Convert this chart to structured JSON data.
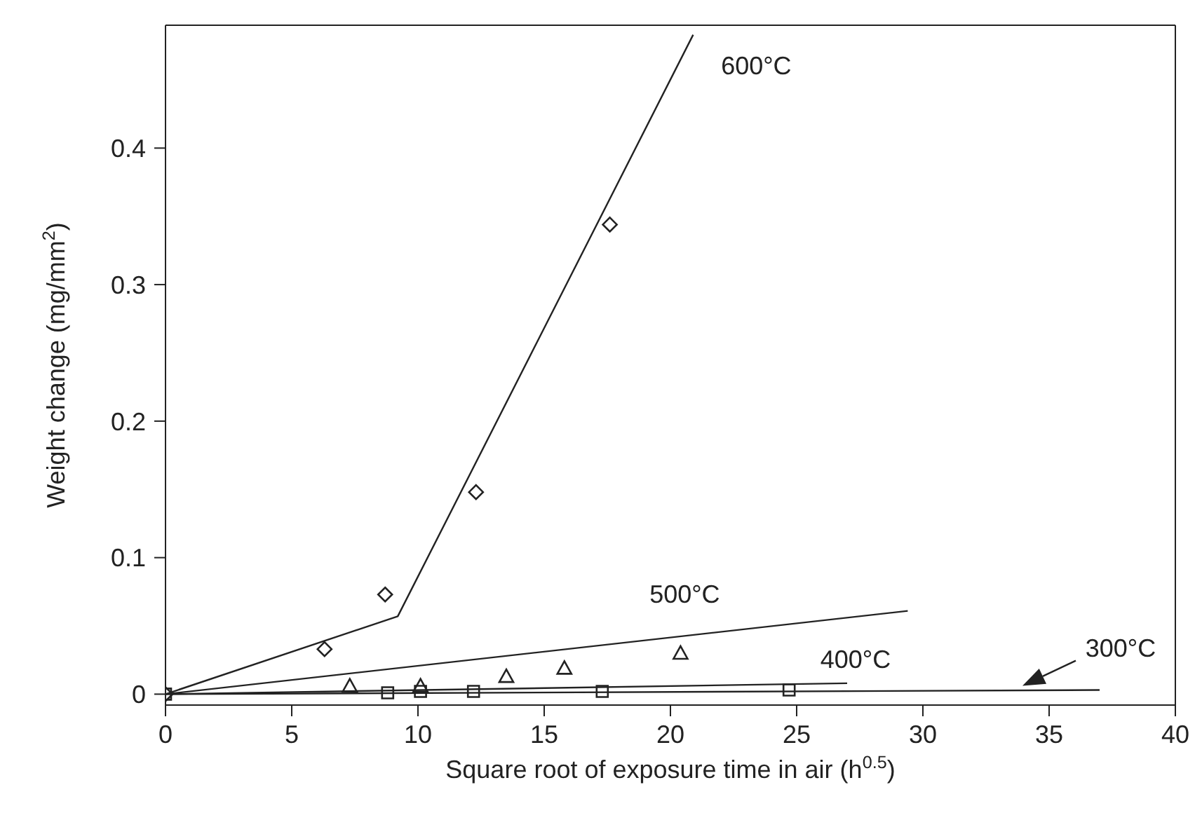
{
  "chart_data": {
    "type": "scatter",
    "xlabel": "Square root of exposure time in air (h$^{0.5}$)",
    "ylabel": "Weight change (mg/mm$^{2}$)",
    "xlim": [
      0,
      40
    ],
    "xticks": [
      0,
      5,
      10,
      15,
      20,
      25,
      30,
      35,
      40
    ],
    "ylim": [
      -0.008,
      0.49
    ],
    "yticks": [
      0,
      0.1,
      0.2,
      0.3,
      0.4
    ],
    "series": [
      {
        "type": "line",
        "name": "600°C",
        "color": "#222222",
        "marker": "none",
        "x": [
          0,
          9.2,
          20.9
        ],
        "values": [
          0,
          0.057,
          0.483
        ]
      },
      {
        "type": "line",
        "name": "500°C",
        "color": "#222222",
        "marker": "none",
        "x": [
          0,
          29.4
        ],
        "values": [
          0,
          0.061
        ]
      },
      {
        "type": "line",
        "name": "400°C",
        "color": "#222222",
        "marker": "none",
        "x": [
          0,
          27
        ],
        "values": [
          0,
          0.008
        ]
      },
      {
        "type": "line",
        "name": "300°C",
        "color": "#222222",
        "marker": "none",
        "x": [
          0,
          37
        ],
        "values": [
          0,
          0.003
        ]
      },
      {
        "color": "#222222",
        "marker": "diamond",
        "x": [
          0,
          6.3,
          8.7,
          12.3,
          17.6
        ],
        "values": [
          0,
          0.033,
          0.073,
          0.148,
          0.344
        ]
      },
      {
        "color": "#222222",
        "marker": "triangle",
        "x": [
          7.3,
          10.1,
          13.5,
          15.8,
          20.4
        ],
        "values": [
          0.006,
          0.006,
          0.013,
          0.019,
          0.03
        ]
      },
      {
        "color": "#222222",
        "marker": "square",
        "x": [
          0,
          8.8,
          10.1,
          12.2,
          17.3,
          24.7
        ],
        "values": [
          0,
          0.001,
          0.002,
          0.002,
          0.002,
          0.003
        ]
      }
    ]
  }
}
